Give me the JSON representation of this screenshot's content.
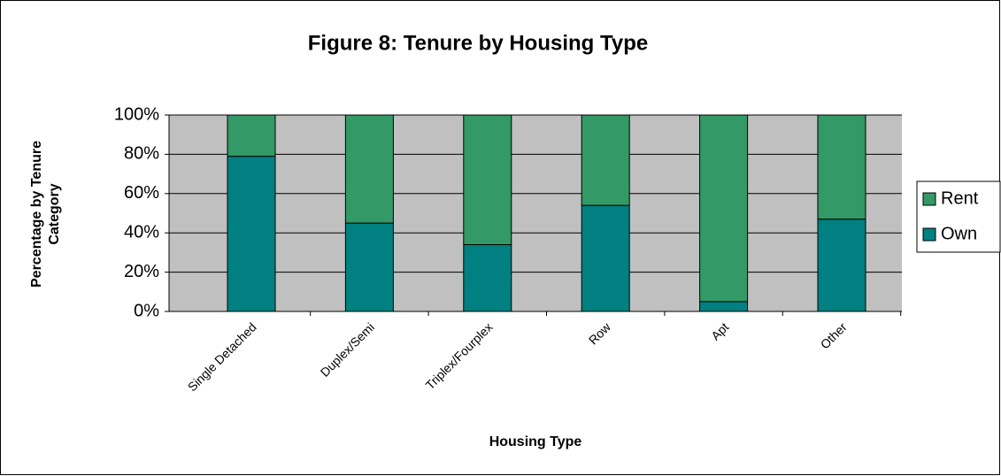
{
  "chart_data": {
    "type": "stacked_bar",
    "title": "Figure 8: Tenure by Housing Type",
    "xlabel": "Housing Type",
    "ylabel": [
      "Percentage by Tenure",
      "Category"
    ],
    "categories": [
      "Single Detached",
      "Duplex/Semi",
      "Triplex/Fourplex",
      "Row",
      "Apt",
      "Other"
    ],
    "series": [
      {
        "name": "Own",
        "color": "#008080",
        "values": [
          79,
          45,
          34,
          54,
          5,
          47
        ]
      },
      {
        "name": "Rent",
        "color": "#339966",
        "values": [
          21,
          55,
          66,
          46,
          95,
          53
        ]
      }
    ],
    "ylim": [
      0,
      100
    ],
    "yticks": [
      {
        "value": 0,
        "label": "0%"
      },
      {
        "value": 20,
        "label": "20%"
      },
      {
        "value": 40,
        "label": "40%"
      },
      {
        "value": 60,
        "label": "60%"
      },
      {
        "value": 80,
        "label": "80%"
      },
      {
        "value": 100,
        "label": "100%"
      }
    ],
    "grid": true,
    "legend": "right"
  }
}
